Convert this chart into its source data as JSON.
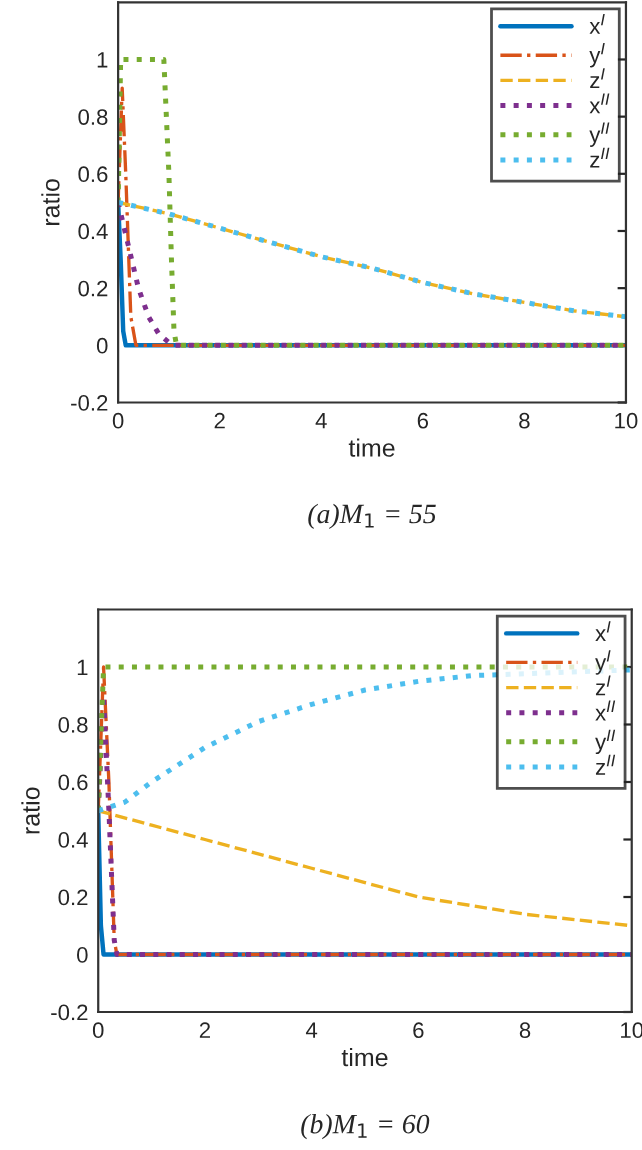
{
  "chart_data": [
    {
      "type": "line",
      "title": "(a)M$_{1}$ = 55",
      "xlabel": "time",
      "ylabel": "ratio",
      "xlim": [
        0,
        10
      ],
      "ylim": [
        -0.2,
        1.2
      ],
      "xticks": [
        0,
        2,
        4,
        6,
        8,
        10
      ],
      "yticks": [
        -0.2,
        0,
        0.2,
        0.4,
        0.6,
        0.8,
        1
      ],
      "grid": false,
      "legend": "top right",
      "series": [
        {
          "name": "x$^{I}$",
          "color": "#0072bd",
          "line_style": "solid",
          "x": [
            0,
            0.05,
            0.1,
            0.15,
            10
          ],
          "values": [
            0.5,
            0.3,
            0.05,
            0,
            0
          ]
        },
        {
          "name": "y$^{I}$",
          "color": "#d95319",
          "line_style": "dashdot",
          "x": [
            0,
            0.08,
            0.15,
            0.25,
            0.35,
            10
          ],
          "values": [
            0.5,
            0.9,
            0.6,
            0.1,
            0,
            0
          ]
        },
        {
          "name": "z$^{I}$",
          "color": "#edb120",
          "line_style": "dashed",
          "x": [
            0,
            1,
            2,
            3,
            4,
            5,
            6,
            7,
            8,
            9,
            10
          ],
          "values": [
            0.5,
            0.46,
            0.41,
            0.36,
            0.31,
            0.27,
            0.22,
            0.18,
            0.15,
            0.12,
            0.1
          ]
        },
        {
          "name": "x$^{II}$",
          "color": "#7e2f8e",
          "line_style": "dotted",
          "x": [
            0,
            0.2,
            0.4,
            0.6,
            0.8,
            1.0,
            1.1,
            10
          ],
          "values": [
            0.5,
            0.35,
            0.2,
            0.1,
            0.04,
            0.01,
            0,
            0
          ]
        },
        {
          "name": "y$^{II}$",
          "color": "#77ac30",
          "line_style": "dotted",
          "x": [
            0,
            0.05,
            0.9,
            1.0,
            1.05,
            1.1,
            1.15,
            10
          ],
          "values": [
            0.5,
            1.0,
            1.0,
            0.6,
            0.3,
            0.05,
            0,
            0
          ]
        },
        {
          "name": "z$^{II}$",
          "color": "#4dbeee",
          "line_style": "dotted",
          "x": [
            0,
            1,
            2,
            3,
            4,
            5,
            6,
            7,
            8,
            9,
            10
          ],
          "values": [
            0.5,
            0.46,
            0.41,
            0.36,
            0.31,
            0.27,
            0.22,
            0.18,
            0.15,
            0.12,
            0.1
          ]
        }
      ]
    },
    {
      "type": "line",
      "title": "(b)M$_{1}$ = 60",
      "xlabel": "time",
      "ylabel": "ratio",
      "xlim": [
        0,
        10
      ],
      "ylim": [
        -0.2,
        1.2
      ],
      "xticks": [
        0,
        2,
        4,
        6,
        8,
        10
      ],
      "yticks": [
        -0.2,
        0,
        0.2,
        0.4,
        0.6,
        0.8,
        1
      ],
      "grid": false,
      "legend": "top right",
      "series": [
        {
          "name": "x$^{I}$",
          "color": "#0072bd",
          "line_style": "solid",
          "x": [
            0,
            0.05,
            0.1,
            10
          ],
          "values": [
            0.5,
            0.1,
            0,
            0
          ]
        },
        {
          "name": "y$^{I}$",
          "color": "#d95319",
          "line_style": "dashdot",
          "x": [
            0,
            0.1,
            0.2,
            0.3,
            0.35,
            10
          ],
          "values": [
            0.5,
            1.0,
            0.6,
            0.05,
            0,
            0
          ]
        },
        {
          "name": "z$^{I}$",
          "color": "#edb120",
          "line_style": "dashed",
          "x": [
            0,
            1,
            2,
            3,
            4,
            5,
            6,
            7,
            8,
            9,
            10
          ],
          "values": [
            0.5,
            0.45,
            0.4,
            0.35,
            0.3,
            0.25,
            0.2,
            0.17,
            0.14,
            0.12,
            0.1
          ]
        },
        {
          "name": "x$^{II}$",
          "color": "#7e2f8e",
          "line_style": "dotted",
          "x": [
            0,
            0.1,
            0.2,
            0.3,
            0.35,
            10
          ],
          "values": [
            0.5,
            0.9,
            0.5,
            0.05,
            0,
            0
          ]
        },
        {
          "name": "y$^{II}$",
          "color": "#77ac30",
          "line_style": "dotted",
          "x": [
            0,
            0.1,
            10
          ],
          "values": [
            0.5,
            1.0,
            1.0
          ]
        },
        {
          "name": "z$^{II}$",
          "color": "#4dbeee",
          "line_style": "dotted",
          "x": [
            0,
            0.5,
            1,
            2,
            3,
            4,
            5,
            6,
            7,
            10
          ],
          "values": [
            0.5,
            0.53,
            0.6,
            0.72,
            0.81,
            0.87,
            0.92,
            0.95,
            0.97,
            0.99
          ]
        }
      ]
    }
  ]
}
